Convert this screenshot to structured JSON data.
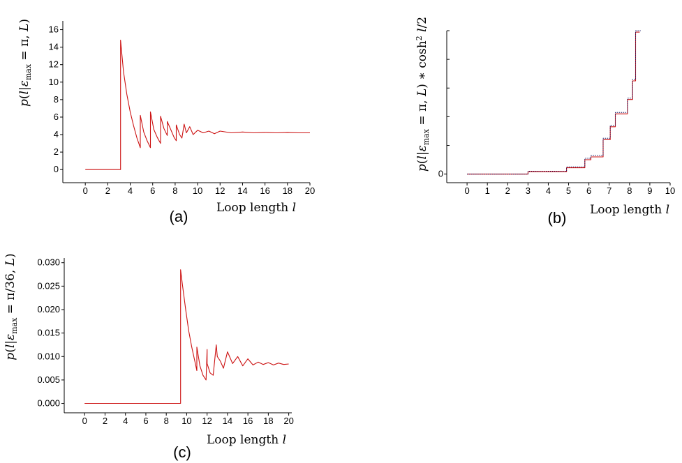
{
  "figure": {
    "panels": [
      "(a)",
      "(b)",
      "(c)"
    ]
  },
  "chart_data": [
    {
      "id": "a",
      "type": "line",
      "label": "(a)",
      "xlabel": "Loop length l",
      "ylabel": "p(l|ε_max = π, L)",
      "xlim": [
        -2,
        20
      ],
      "ylim": [
        -1.5,
        17
      ],
      "xticks": [
        0,
        2,
        4,
        6,
        8,
        10,
        12,
        14,
        16,
        18,
        20
      ],
      "yticks": [
        0,
        2,
        4,
        6,
        8,
        10,
        12,
        14,
        16
      ],
      "grid": false,
      "color": "#cc1111",
      "series": [
        {
          "x": [
            0,
            3.14,
            3.14,
            3.4,
            3.7,
            4.0,
            4.3,
            4.6,
            4.9,
            4.9,
            5.2,
            5.5,
            5.8,
            5.8,
            6.1,
            6.4,
            6.7,
            6.7,
            7.0,
            7.3,
            7.3,
            7.6,
            7.9,
            8.1,
            8.1,
            8.4,
            8.6,
            8.8,
            9.0,
            9.3,
            9.6,
            10,
            10.5,
            11,
            11.5,
            12,
            13,
            14,
            15,
            16,
            17,
            18,
            19,
            20
          ],
          "y": [
            0,
            0,
            14.8,
            11.2,
            8.6,
            6.6,
            5.0,
            3.6,
            2.5,
            6.2,
            4.3,
            3.3,
            2.5,
            6.6,
            4.6,
            3.7,
            3.0,
            6.1,
            4.7,
            3.9,
            5.5,
            4.6,
            3.7,
            3.3,
            5.1,
            4.0,
            3.6,
            5.2,
            4.2,
            4.9,
            4.0,
            4.5,
            4.2,
            4.4,
            4.1,
            4.4,
            4.2,
            4.3,
            4.2,
            4.25,
            4.2,
            4.25,
            4.2,
            4.2
          ]
        }
      ]
    },
    {
      "id": "b",
      "type": "line",
      "label": "(b)",
      "xlabel": "Loop length l",
      "ylabel": "p(l|ε_max = π, L) ∗ cosh² l/2",
      "xlim": [
        -1,
        10
      ],
      "ylim": [
        -0.3,
        5
      ],
      "xticks": [
        0,
        1,
        2,
        3,
        4,
        5,
        6,
        7,
        8,
        9,
        10
      ],
      "yticks": [
        0
      ],
      "grid": false,
      "series": [
        {
          "style": "solid",
          "color": "#cc1111",
          "x": [
            0,
            3.0,
            3.0,
            4.9,
            4.9,
            5.8,
            5.8,
            6.1,
            6.1,
            6.7,
            6.7,
            7.05,
            7.05,
            7.3,
            7.3,
            7.9,
            7.9,
            8.15,
            8.15,
            8.3,
            8.3,
            8.5
          ],
          "y": [
            0,
            0,
            0.08,
            0.08,
            0.22,
            0.22,
            0.5,
            0.5,
            0.6,
            0.6,
            1.2,
            1.2,
            1.65,
            1.65,
            2.1,
            2.1,
            2.6,
            2.6,
            3.25,
            3.25,
            4.95,
            4.95
          ]
        },
        {
          "style": "dotted",
          "color": "#1a1a66",
          "x": [
            0,
            3.0,
            3.0,
            4.9,
            4.9,
            5.8,
            5.8,
            6.1,
            6.1,
            6.7,
            6.7,
            7.05,
            7.05,
            7.3,
            7.3,
            7.9,
            7.9,
            8.15,
            8.15,
            8.3,
            8.3,
            8.55
          ],
          "y": [
            0,
            0,
            0.1,
            0.1,
            0.25,
            0.25,
            0.55,
            0.55,
            0.65,
            0.65,
            1.25,
            1.25,
            1.7,
            1.7,
            2.15,
            2.15,
            2.65,
            2.65,
            3.3,
            3.3,
            5.0,
            5.0
          ]
        }
      ]
    },
    {
      "id": "c",
      "type": "line",
      "label": "(c)",
      "xlabel": "Loop length l",
      "ylabel": "p(l|ε_max = π/36, L)",
      "xlim": [
        -2,
        20.3
      ],
      "ylim": [
        -0.002,
        0.031
      ],
      "xticks": [
        0,
        2,
        4,
        6,
        8,
        10,
        12,
        14,
        16,
        18,
        20
      ],
      "yticks": [
        0.0,
        0.005,
        0.01,
        0.015,
        0.02,
        0.025,
        0.03
      ],
      "yticklabels": [
        "0.000",
        "0.005",
        "0.010",
        "0.015",
        "0.020",
        "0.025",
        "0.030"
      ],
      "grid": false,
      "color": "#cc1111",
      "series": [
        {
          "x": [
            0,
            9.4,
            9.4,
            9.6,
            9.9,
            10.2,
            10.5,
            10.8,
            11.0,
            11.0,
            11.3,
            11.6,
            11.9,
            12.0,
            12.0,
            12.3,
            12.6,
            12.9,
            13.0,
            13.3,
            13.6,
            14.0,
            14.5,
            15.0,
            15.5,
            16.0,
            16.5,
            17.0,
            17.5,
            18.0,
            18.5,
            19.0,
            19.5,
            20.0
          ],
          "y": [
            0,
            0,
            0.0285,
            0.025,
            0.02,
            0.0155,
            0.012,
            0.009,
            0.007,
            0.012,
            0.008,
            0.006,
            0.005,
            0.0115,
            0.0085,
            0.0065,
            0.006,
            0.0125,
            0.01,
            0.009,
            0.0075,
            0.011,
            0.0085,
            0.01,
            0.008,
            0.0095,
            0.0082,
            0.0088,
            0.0083,
            0.0087,
            0.0082,
            0.0086,
            0.0083,
            0.0084
          ]
        }
      ]
    }
  ]
}
